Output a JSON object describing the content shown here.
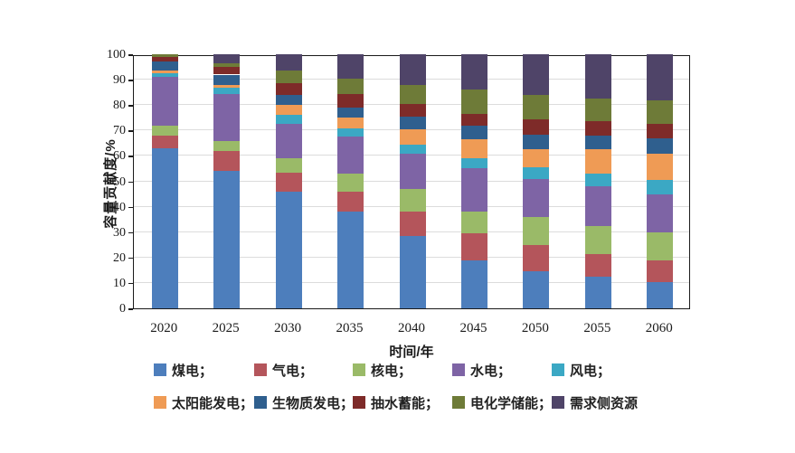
{
  "chart_data": {
    "type": "bar",
    "stacked": true,
    "title": "",
    "xlabel": "时间/年",
    "ylabel": "容量贡献度/%",
    "ylim": [
      0,
      100
    ],
    "yticks": [
      0,
      10,
      20,
      30,
      40,
      50,
      60,
      70,
      80,
      90,
      100
    ],
    "grid": "horizontal",
    "legend_position": "bottom",
    "categories": [
      "2020",
      "2025",
      "2030",
      "2035",
      "2040",
      "2045",
      "2050",
      "2055",
      "2060"
    ],
    "series": [
      {
        "name": "煤电",
        "color": "#4d7ebc",
        "values": [
          63,
          54,
          46,
          38,
          28.5,
          19,
          14.5,
          12.5,
          10.5
        ]
      },
      {
        "name": "气电",
        "color": "#b4555b",
        "values": [
          5,
          8,
          7.5,
          8,
          9.5,
          10.5,
          10.5,
          9,
          8.5
        ]
      },
      {
        "name": "核电",
        "color": "#9aba68",
        "values": [
          4,
          4,
          5.5,
          7,
          9,
          8.5,
          11,
          11,
          11
        ]
      },
      {
        "name": "水电",
        "color": "#7e64a5",
        "values": [
          19,
          18.5,
          13.5,
          14.5,
          14,
          17,
          15,
          15.5,
          15
        ]
      },
      {
        "name": "风电",
        "color": "#3ba8c4",
        "values": [
          1.5,
          2.5,
          3.5,
          3.5,
          3.5,
          4,
          4.5,
          5,
          5.5
        ]
      },
      {
        "name": "太阳能发电",
        "color": "#ef9b55",
        "values": [
          1,
          1,
          4,
          4,
          6,
          7.5,
          7,
          9.5,
          10.5
        ]
      },
      {
        "name": "生物质发电",
        "color": "#2f5f8e",
        "values": [
          3.5,
          4,
          4,
          4,
          5,
          5.5,
          6,
          5.5,
          6
        ]
      },
      {
        "name": "抽水蓄能",
        "color": "#7e2b29",
        "values": [
          2,
          3,
          4.5,
          5.5,
          5,
          4.5,
          6,
          5.5,
          5.5
        ]
      },
      {
        "name": "电化学储能",
        "color": "#6e7b38",
        "values": [
          1,
          1.5,
          5,
          6,
          7.5,
          9.5,
          9.5,
          9,
          9.5
        ]
      },
      {
        "name": "需求侧资源",
        "color": "#4f4468",
        "values": [
          0,
          3.5,
          6.5,
          9.5,
          12,
          14,
          16,
          17.5,
          18
        ]
      }
    ],
    "legend_rows": [
      [
        {
          "label": "煤电；",
          "color": "#4d7ebc"
        },
        {
          "label": "气电；",
          "color": "#b4555b"
        },
        {
          "label": "核电；",
          "color": "#9aba68"
        },
        {
          "label": "水电；",
          "color": "#7e64a5"
        },
        {
          "label": "风电；",
          "color": "#3ba8c4"
        }
      ],
      [
        {
          "label": "太阳能发电；",
          "color": "#ef9b55"
        },
        {
          "label": "生物质发电；",
          "color": "#2f5f8e"
        },
        {
          "label": "抽水蓄能；",
          "color": "#7e2b29"
        },
        {
          "label": "电化学储能；",
          "color": "#6e7b38"
        },
        {
          "label": "需求侧资源",
          "color": "#4f4468"
        }
      ]
    ],
    "colors": {
      "axis": "#1a1a1a",
      "gridline": "#dcdcdc",
      "background": "#ffffff"
    }
  }
}
